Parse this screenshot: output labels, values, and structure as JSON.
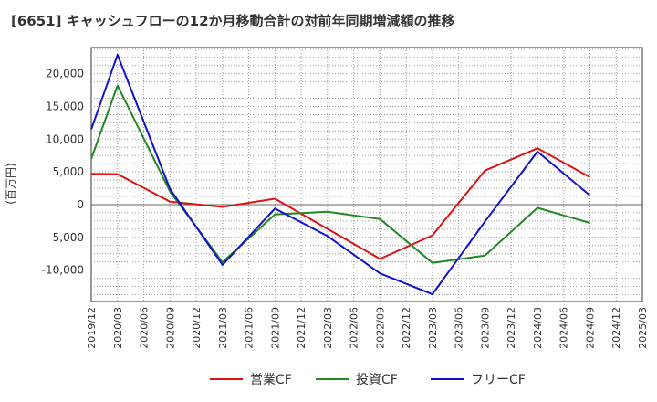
{
  "chart_data": {
    "type": "line",
    "title": "[6651]  キャッシュフローの12か月移動合計の対前年同期増減額の推移",
    "ylabel": "(百万円)",
    "xlabel": "",
    "categories": [
      "2019/12",
      "2020/03",
      "2020/06",
      "2020/09",
      "2020/12",
      "2021/03",
      "2021/06",
      "2021/09",
      "2021/12",
      "2022/03",
      "2022/06",
      "2022/09",
      "2022/12",
      "2023/03",
      "2023/06",
      "2023/09",
      "2023/12",
      "2024/03",
      "2024/06",
      "2024/09",
      "2024/12",
      "2025/03"
    ],
    "ylim": [
      -14800,
      24000
    ],
    "yticks": [
      -10000,
      -5000,
      0,
      5000,
      10000,
      15000,
      20000
    ],
    "ytick_labels": [
      "-10,000",
      "-5,000",
      "0",
      "5,000",
      "10,000",
      "15,000",
      "20,000"
    ],
    "grid": true,
    "legend_position": "bottom",
    "series": [
      {
        "name": "営業CF",
        "color": "#dd1111",
        "x": [
          "2019/12",
          "2020/03",
          "2020/09",
          "2021/03",
          "2021/09",
          "2022/09",
          "2023/03",
          "2023/09",
          "2024/03",
          "2024/09"
        ],
        "values": [
          4700,
          4650,
          450,
          -350,
          900,
          -8300,
          -4700,
          5200,
          8600,
          4200
        ]
      },
      {
        "name": "投資CF",
        "color": "#228822",
        "x": [
          "2019/12",
          "2020/03",
          "2020/09",
          "2021/03",
          "2021/09",
          "2022/03",
          "2022/09",
          "2023/03",
          "2023/09",
          "2024/03",
          "2024/09"
        ],
        "values": [
          7000,
          18200,
          2000,
          -8800,
          -1500,
          -1100,
          -2200,
          -8900,
          -7800,
          -500,
          -2800
        ]
      },
      {
        "name": "フリーCF",
        "color": "#1111cc",
        "x": [
          "2019/12",
          "2020/03",
          "2020/09",
          "2021/03",
          "2021/09",
          "2022/03",
          "2022/09",
          "2023/03",
          "2023/09",
          "2024/03",
          "2024/09"
        ],
        "values": [
          11500,
          22900,
          2400,
          -9200,
          -600,
          -4800,
          -10500,
          -13700,
          -2600,
          8100,
          1400
        ]
      }
    ]
  }
}
